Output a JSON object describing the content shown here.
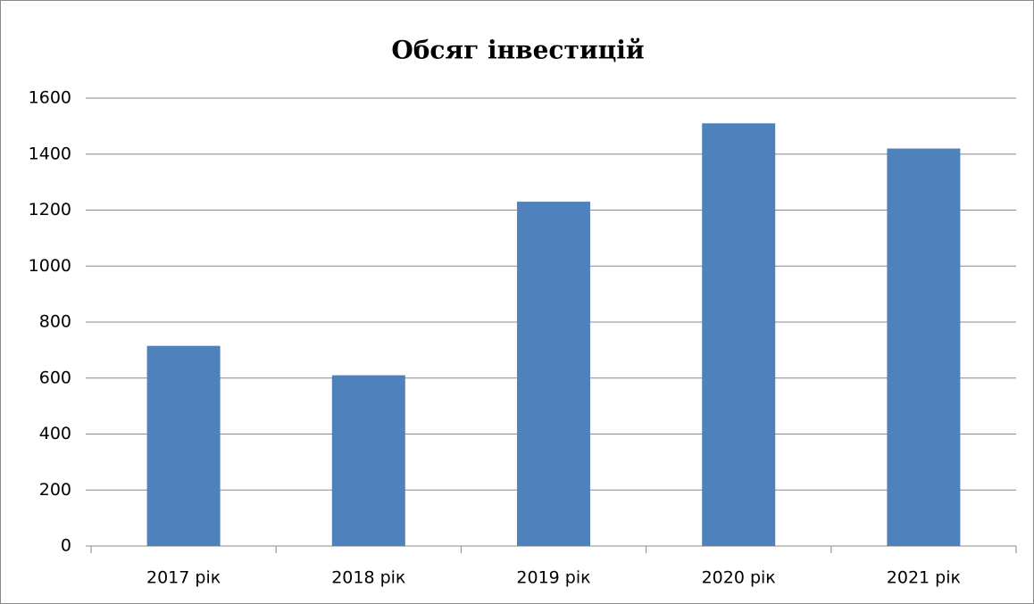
{
  "chart_data": {
    "type": "bar",
    "title": "Обсяг інвестицій",
    "categories": [
      "2017 рік",
      "2018 рік",
      "2019 рік",
      "2020 рік",
      "2021 рік"
    ],
    "values": [
      715,
      610,
      1230,
      1510,
      1420
    ],
    "color": "#4f81bd",
    "ylim": [
      0,
      1600
    ],
    "yticks": [
      0,
      200,
      400,
      600,
      800,
      1000,
      1200,
      1400,
      1600
    ],
    "grid": true
  }
}
